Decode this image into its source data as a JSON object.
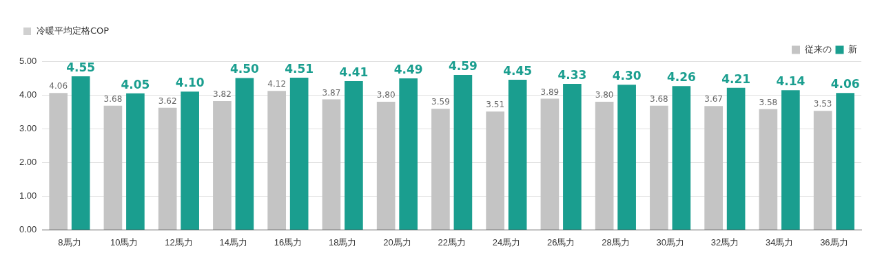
{
  "chart_data": {
    "type": "bar",
    "ylabel": "冷暖平均定格COP",
    "categories": [
      "8馬力",
      "10馬力",
      "12馬力",
      "14馬力",
      "16馬力",
      "18馬力",
      "20馬力",
      "22馬力",
      "24馬力",
      "26馬力",
      "28馬力",
      "30馬力",
      "32馬力",
      "34馬力",
      "36馬力"
    ],
    "series": [
      {
        "name": "従来の",
        "color": "#c4c4c4",
        "values": [
          4.06,
          3.68,
          3.62,
          3.82,
          4.12,
          3.87,
          3.8,
          3.59,
          3.51,
          3.89,
          3.8,
          3.68,
          3.67,
          3.58,
          3.53
        ],
        "value_labels": [
          "4.06",
          "3.68",
          "3.62",
          "3.82",
          "4.12",
          "3.87",
          "3.80",
          "3.59",
          "3.51",
          "3.89",
          "3.80",
          "3.68",
          "3.67",
          "3.58",
          "3.53"
        ]
      },
      {
        "name": "新",
        "color": "#1a9e8f",
        "values": [
          4.55,
          4.05,
          4.1,
          4.5,
          4.51,
          4.41,
          4.49,
          4.59,
          4.45,
          4.33,
          4.3,
          4.26,
          4.21,
          4.14,
          4.06
        ],
        "value_labels": [
          "4.55",
          "4.05",
          "4.10",
          "4.50",
          "4.51",
          "4.41",
          "4.49",
          "4.59",
          "4.45",
          "4.33",
          "4.30",
          "4.26",
          "4.21",
          "4.14",
          "4.06"
        ]
      }
    ],
    "ylim": [
      0,
      5
    ],
    "yticks": [
      {
        "value": 0,
        "label": "0.00"
      },
      {
        "value": 1,
        "label": "1.00"
      },
      {
        "value": 2,
        "label": "2.00"
      },
      {
        "value": 3,
        "label": "3.00"
      },
      {
        "value": 4,
        "label": "4.00"
      },
      {
        "value": 5,
        "label": "5.00"
      }
    ],
    "grid": "y",
    "legend": "top right"
  }
}
